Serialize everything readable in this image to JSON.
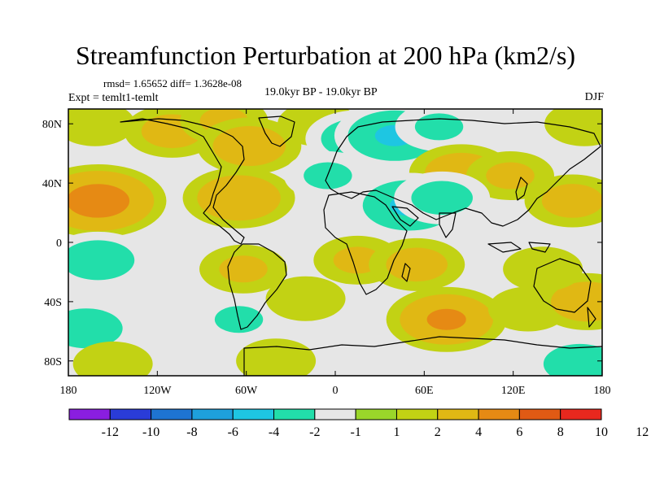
{
  "chart_data": {
    "type": "heatmap",
    "title": "Streamfunction Perturbation at 200 hPa (km2/s)",
    "stats_text": "rmsd= 1.65652  diff= 1.3628e-08",
    "experiment_text": "Expt = temlt1-temlt",
    "period_text": "19.0kyr BP - 19.0kyr BP",
    "season_text": "DJF",
    "xlim": [
      -180,
      180
    ],
    "ylim": [
      -90,
      90
    ],
    "x_ticks": [
      {
        "value": -180,
        "label": "180"
      },
      {
        "value": -120,
        "label": "120W"
      },
      {
        "value": -60,
        "label": "60W"
      },
      {
        "value": 0,
        "label": "0"
      },
      {
        "value": 60,
        "label": "60E"
      },
      {
        "value": 120,
        "label": "120E"
      },
      {
        "value": 180,
        "label": "180"
      }
    ],
    "y_ticks": [
      {
        "value": 80,
        "label": "80N"
      },
      {
        "value": 40,
        "label": "40N"
      },
      {
        "value": 0,
        "label": "0"
      },
      {
        "value": -40,
        "label": "40S"
      },
      {
        "value": -80,
        "label": "80S"
      }
    ],
    "colorbar": {
      "colors": [
        "#8a1ee0",
        "#2a3cd8",
        "#1e74d2",
        "#1ea0dc",
        "#1ec6e2",
        "#22deaa",
        "#e6e6e6",
        "#9ad62a",
        "#c2d214",
        "#e0b814",
        "#e68a14",
        "#e05a14",
        "#e8281e"
      ],
      "labels": [
        "-12",
        "-10",
        "-8",
        "-6",
        "-4",
        "-2",
        "-1",
        "1",
        "2",
        "4",
        "6",
        "8",
        "10",
        "12"
      ]
    },
    "anomalies": [
      {
        "lon": -110,
        "lat": 75,
        "value": 2.5
      },
      {
        "lon": -75,
        "lat": 82,
        "value": 2
      },
      {
        "lon": -58,
        "lat": 65,
        "value": 3
      },
      {
        "lon": -162,
        "lat": 80,
        "value": 1.5
      },
      {
        "lon": -12,
        "lat": 80,
        "value": 1.5
      },
      {
        "lon": 15,
        "lat": 70,
        "value": -3
      },
      {
        "lon": 40,
        "lat": 72,
        "value": -4
      },
      {
        "lon": 70,
        "lat": 78,
        "value": -2
      },
      {
        "lon": 140,
        "lat": 78,
        "value": -1.5
      },
      {
        "lon": 168,
        "lat": 80,
        "value": 1.5
      },
      {
        "lon": 85,
        "lat": 47,
        "value": 3
      },
      {
        "lon": 118,
        "lat": 45,
        "value": 2
      },
      {
        "lon": 160,
        "lat": 28,
        "value": 2.5
      },
      {
        "lon": -160,
        "lat": 28,
        "value": 5
      },
      {
        "lon": -65,
        "lat": 30,
        "value": 3.5
      },
      {
        "lon": -5,
        "lat": 45,
        "value": -2
      },
      {
        "lon": 50,
        "lat": 25,
        "value": -4
      },
      {
        "lon": 72,
        "lat": 30,
        "value": -2.5
      },
      {
        "lon": -160,
        "lat": -12,
        "value": -3
      },
      {
        "lon": -62,
        "lat": -18,
        "value": 2
      },
      {
        "lon": 15,
        "lat": -12,
        "value": 2
      },
      {
        "lon": 55,
        "lat": -15,
        "value": 2.5
      },
      {
        "lon": -168,
        "lat": -58,
        "value": -3
      },
      {
        "lon": -65,
        "lat": -52,
        "value": -2
      },
      {
        "lon": -20,
        "lat": -38,
        "value": 1.5
      },
      {
        "lon": 75,
        "lat": -52,
        "value": 4
      },
      {
        "lon": 130,
        "lat": -45,
        "value": 1.5
      },
      {
        "lon": 170,
        "lat": -40,
        "value": 3
      },
      {
        "lon": 140,
        "lat": -18,
        "value": 1.5
      },
      {
        "lon": 165,
        "lat": -82,
        "value": -3
      },
      {
        "lon": -150,
        "lat": -82,
        "value": 1.5
      },
      {
        "lon": -40,
        "lat": -80,
        "value": 1.5
      }
    ]
  }
}
